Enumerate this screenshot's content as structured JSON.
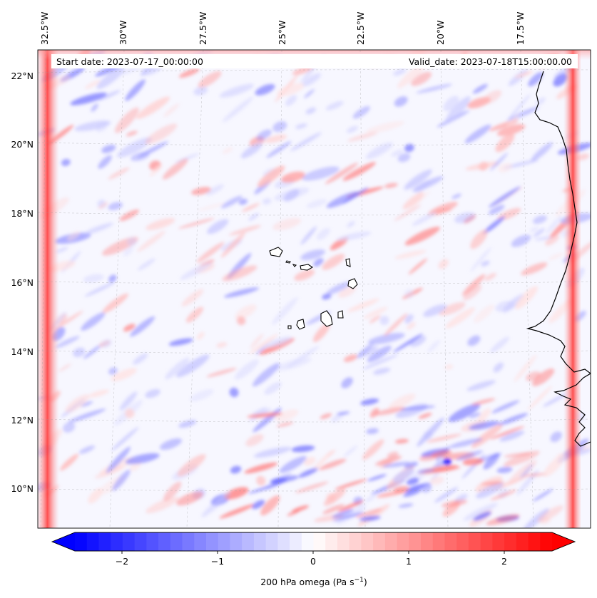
{
  "map": {
    "start_date": "Start date: 2023-07-17_00:00:00",
    "valid_date": "Valid_date: 2023-07-18T15:00:00.00",
    "lon_labels": [
      "32.5°W",
      "30°W",
      "27.5°W",
      "25°W",
      "22.5°W",
      "20°W",
      "17.5°W"
    ],
    "lat_labels": [
      "22°N",
      "20°N",
      "18°N",
      "16°N",
      "14°N",
      "12°N",
      "10°N"
    ],
    "extent": {
      "lon_min": -33.0,
      "lon_max": -15.6,
      "lat_min": 8.9,
      "lat_max": 22.8
    },
    "gridlines": true
  },
  "colorbar": {
    "label": "200 hPa omega (Pa s",
    "label_exp": "−1",
    "label_close": ")",
    "ticks": [
      "−2",
      "−1",
      "0",
      "1",
      "2"
    ],
    "vmin": -2.6,
    "vmax": 2.6,
    "colormap": "bwr",
    "extend": "both",
    "colors": {
      "low": "#0000ff",
      "mid": "#ffffff",
      "high": "#ff0000"
    }
  }
}
